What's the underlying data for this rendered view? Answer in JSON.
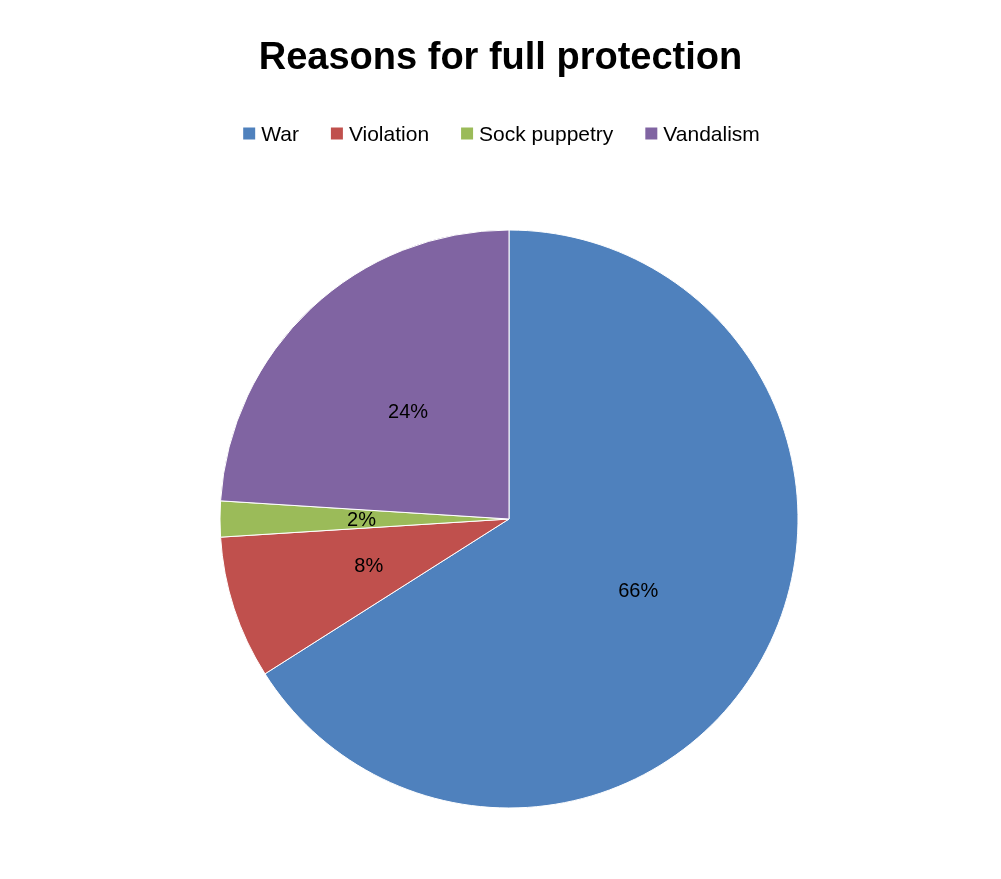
{
  "chart_data": {
    "type": "pie",
    "title": "Reasons for full protection",
    "categories": [
      "War",
      "Violation",
      "Sock puppetry",
      "Vandalism"
    ],
    "values": [
      66,
      8,
      2,
      24
    ],
    "colors": [
      "#4f81bd",
      "#c0504d",
      "#9bbb59",
      "#8064a2"
    ],
    "value_labels": [
      "66%",
      "8%",
      "2%",
      "24%"
    ],
    "legend": "top"
  }
}
